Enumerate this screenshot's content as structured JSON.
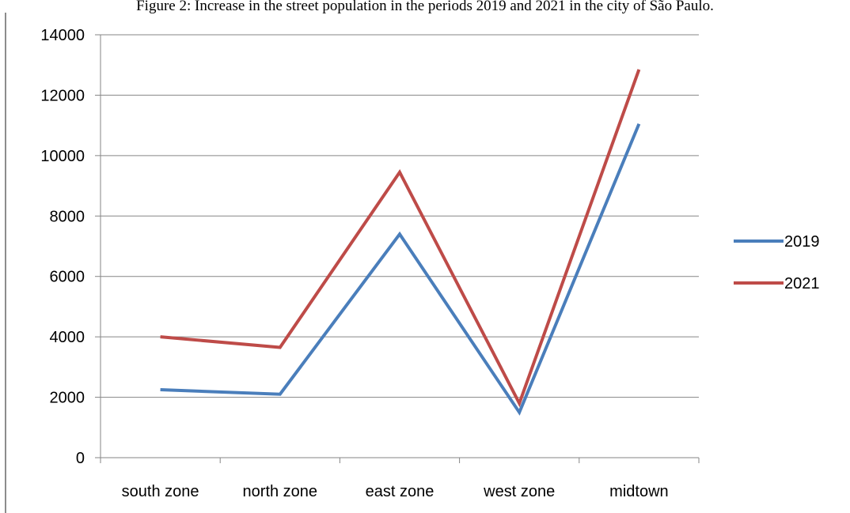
{
  "figure": {
    "caption": "Figure 2: Increase in the street population in the periods 2019 and 2021 in the city of São Paulo."
  },
  "chart_data": {
    "type": "line",
    "title": "",
    "xlabel": "",
    "ylabel": "",
    "categories": [
      "south zone",
      "north zone",
      "east zone",
      "west zone",
      "midtown"
    ],
    "ylim": [
      0,
      14000
    ],
    "yticks": [
      "0",
      "2000",
      "4000",
      "6000",
      "8000",
      "10000",
      "12000",
      "14000"
    ],
    "grid": "horizontal",
    "legend_position": "right",
    "series": [
      {
        "name": "2019",
        "color": "#4a7ebb",
        "values": [
          2250,
          2100,
          7400,
          1500,
          11050
        ]
      },
      {
        "name": "2021",
        "color": "#be4b48",
        "values": [
          4000,
          3650,
          9450,
          1800,
          12850
        ]
      }
    ]
  }
}
